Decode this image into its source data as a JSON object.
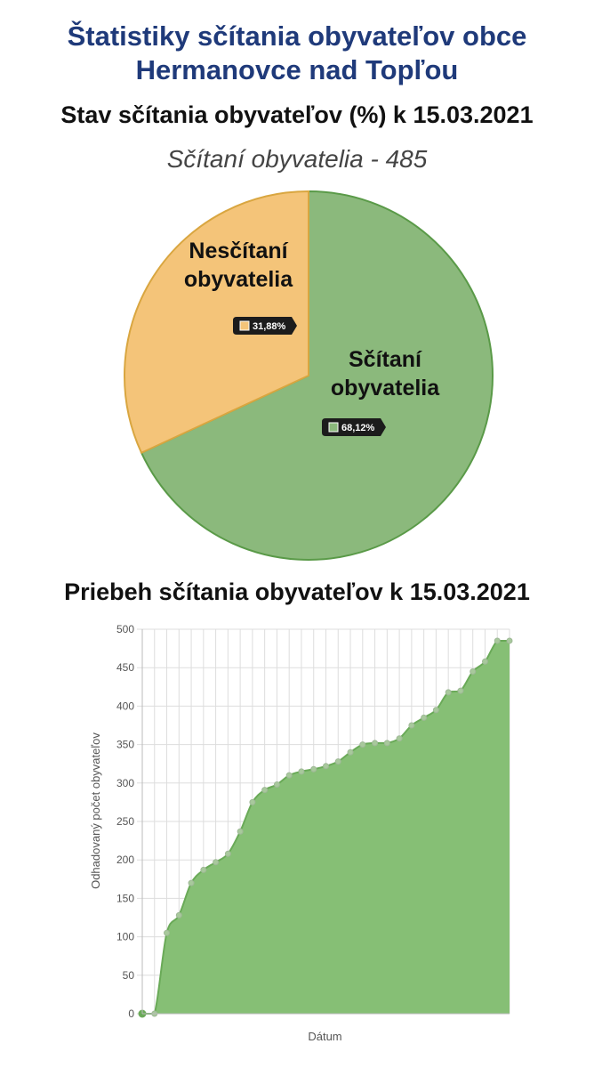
{
  "header": {
    "title_line1": "Štatistiky sčítania obyvateľov obce",
    "title_line2": "Hermanovce nad Topľou",
    "pie_heading": "Stav sčítania obyvateľov (%) k 15.03.2021",
    "line_heading": "Priebeh sčítania obyvateľov k 15.03.2021"
  },
  "colors": {
    "title": "#1f3a7a",
    "green_fill": "#8bb97c",
    "green_stroke": "#5a9a48",
    "orange_fill": "#f4c479",
    "orange_stroke": "#d9a640",
    "area_fill": "#86bf75",
    "area_stroke": "#6aaa58",
    "tooltip_bg": "#1c1c1c"
  },
  "chart_data": [
    {
      "type": "pie",
      "title": "Sčítaní obyvatelia - 485",
      "slices": [
        {
          "label_line1": "Sčítaní",
          "label_line2": "obyvatelia",
          "value": 68.12,
          "value_label": "68,12%"
        },
        {
          "label_line1": "Nesčítaní",
          "label_line2": "obyvatelia",
          "value": 31.88,
          "value_label": "31,88%"
        }
      ]
    },
    {
      "type": "area",
      "xlabel": "Dátum",
      "ylabel": "Odhadovaný počet obyvateľov",
      "ylim": [
        0,
        500
      ],
      "yticks": [
        0,
        50,
        100,
        150,
        200,
        250,
        300,
        350,
        400,
        450,
        500
      ],
      "grid": true,
      "values": [
        0,
        0,
        105,
        128,
        170,
        187,
        197,
        208,
        237,
        275,
        291,
        298,
        310,
        315,
        318,
        322,
        328,
        340,
        350,
        352,
        352,
        358,
        375,
        385,
        395,
        418,
        420,
        445,
        458,
        485,
        485
      ]
    }
  ]
}
